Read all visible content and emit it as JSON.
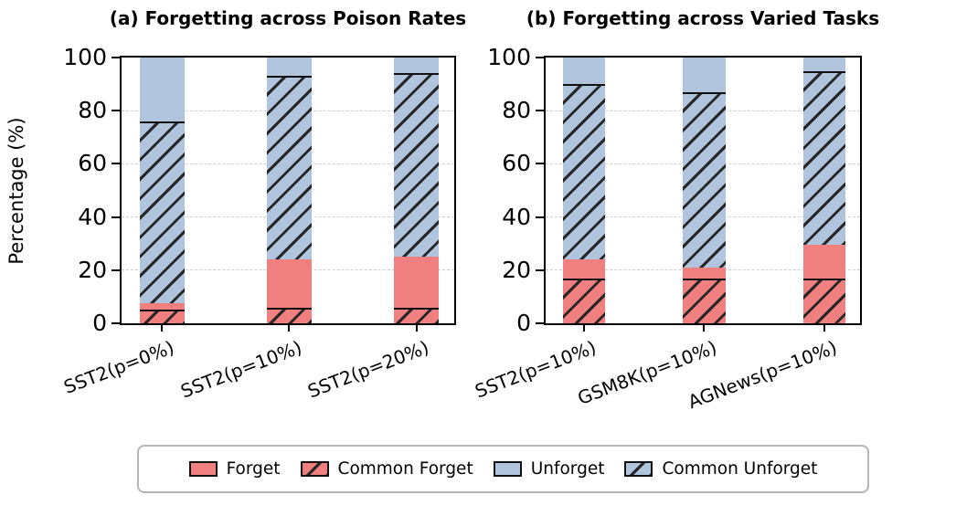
{
  "figure": {
    "ylabel": "Percentage (%)",
    "yticks": [
      100,
      80,
      60,
      40,
      20,
      0
    ],
    "gridlines": [
      20,
      40,
      60,
      80
    ],
    "ylim": [
      0,
      100
    ],
    "colors": {
      "forget": "#f08080",
      "unforget": "#b0c4de",
      "hatch": "#262626",
      "axis": "#000000",
      "gridline": "#cfcfcf"
    }
  },
  "legend": {
    "items": [
      {
        "label": "Forget",
        "color": "#f08080",
        "hatch": false
      },
      {
        "label": "Common Forget",
        "color": "#f08080",
        "hatch": true
      },
      {
        "label": "Unforget",
        "color": "#b0c4de",
        "hatch": false
      },
      {
        "label": "Common Unforget",
        "color": "#b0c4de",
        "hatch": true
      }
    ]
  },
  "chart_data": [
    {
      "type": "bar",
      "stacked": true,
      "title": "(a) Forgetting across Poison Rates",
      "categories": [
        "SST2(p=0%)",
        "SST2(p=10%)",
        "SST2(p=20%)"
      ],
      "ylabel": "Percentage (%)",
      "ylim": [
        0,
        100
      ],
      "grid": "dashed-horizontal",
      "series": [
        {
          "name": "Common Forget",
          "color": "#f08080",
          "hatch": true,
          "values": [
            5,
            6,
            6
          ]
        },
        {
          "name": "Forget",
          "color": "#f08080",
          "hatch": false,
          "values": [
            2.5,
            18,
            19
          ]
        },
        {
          "name": "Common Unforget",
          "color": "#b0c4de",
          "hatch": true,
          "values": [
            68.5,
            69,
            69
          ]
        },
        {
          "name": "Unforget",
          "color": "#b0c4de",
          "hatch": false,
          "values": [
            24,
            7,
            6
          ]
        }
      ],
      "stack_boundaries": {
        "common_forget_top": [
          5,
          6,
          6
        ],
        "forget_top": [
          7.5,
          24,
          25
        ],
        "common_unforget_top": [
          76,
          93,
          94
        ],
        "total": [
          100,
          100,
          100
        ]
      }
    },
    {
      "type": "bar",
      "stacked": true,
      "title": "(b) Forgetting across Varied Tasks",
      "categories": [
        "SST2(p=10%)",
        "GSM8K(p=10%)",
        "AGNews(p=10%)"
      ],
      "ylabel": "Percentage (%)",
      "ylim": [
        0,
        100
      ],
      "grid": "dashed-horizontal",
      "series": [
        {
          "name": "Common Forget",
          "color": "#f08080",
          "hatch": true,
          "values": [
            17,
            17,
            17
          ]
        },
        {
          "name": "Forget",
          "color": "#f08080",
          "hatch": false,
          "values": [
            7,
            4,
            12.5
          ]
        },
        {
          "name": "Common Unforget",
          "color": "#b0c4de",
          "hatch": true,
          "values": [
            66,
            66,
            65.5
          ]
        },
        {
          "name": "Unforget",
          "color": "#b0c4de",
          "hatch": false,
          "values": [
            10,
            13,
            5
          ]
        }
      ],
      "stack_boundaries": {
        "common_forget_top": [
          17,
          17,
          17
        ],
        "forget_top": [
          24,
          21,
          29.5
        ],
        "common_unforget_top": [
          90,
          87,
          95
        ],
        "total": [
          100,
          100,
          100
        ]
      }
    }
  ]
}
